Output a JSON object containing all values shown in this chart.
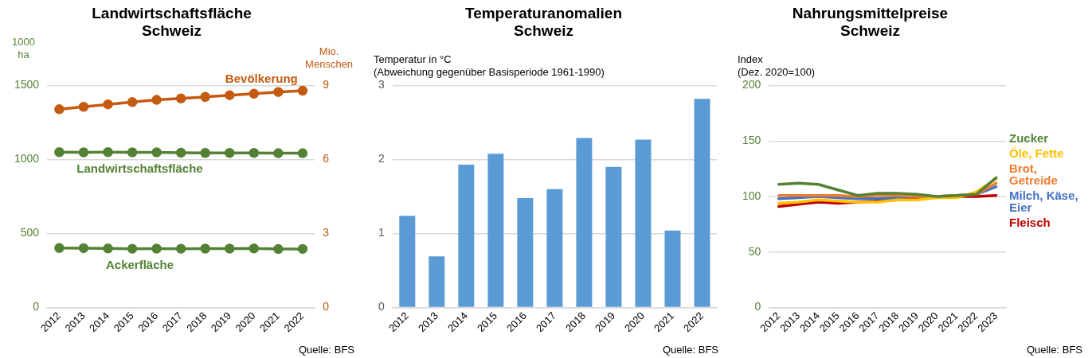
{
  "chart_data": [
    {
      "type": "line",
      "title": "Landwirtschaftsfläche\nSchweiz",
      "ylabel": "1000\nha",
      "y2label": "Mio.\nMenschen",
      "categories": [
        "2012",
        "2013",
        "2014",
        "2015",
        "2016",
        "2017",
        "2018",
        "2019",
        "2020",
        "2021",
        "2022"
      ],
      "series": [
        {
          "name": "Bevölkerung",
          "color": "#c55a11",
          "axis": "y2",
          "values": [
            8.04,
            8.14,
            8.24,
            8.33,
            8.42,
            8.48,
            8.54,
            8.61,
            8.67,
            8.74,
            8.79
          ]
        },
        {
          "name": "Landwirtschaftsfläche",
          "color": "#548235",
          "values": [
            1050,
            1049,
            1050,
            1049,
            1049,
            1046,
            1045,
            1045,
            1045,
            1043,
            1043
          ]
        },
        {
          "name": "Ackerfläche",
          "color": "#548235",
          "values": [
            402,
            401,
            399,
            397,
            398,
            397,
            398,
            398,
            399,
            395,
            396
          ]
        }
      ],
      "ylim": [
        0,
        1500
      ],
      "yticks": [
        0,
        500,
        1000,
        1500
      ],
      "y2lim": [
        0,
        9
      ],
      "y2ticks": [
        0,
        3,
        6,
        9
      ],
      "grid": "y",
      "legend": false,
      "marker": "circle",
      "annotations": [
        "Quelle: BFS"
      ]
    },
    {
      "type": "bar",
      "title": "Temperaturanomalien\nSchweiz",
      "ylabel": "Temperatur in °C\n(Abweichung gegenüber Basisperiode 1961-1990)",
      "categories": [
        "2012",
        "2013",
        "2014",
        "2015",
        "2016",
        "2017",
        "2018",
        "2019",
        "2020",
        "2021",
        "2022"
      ],
      "values": [
        1.24,
        0.69,
        1.93,
        2.08,
        1.48,
        1.6,
        2.29,
        1.9,
        2.27,
        1.04,
        2.82
      ],
      "color": "#5b9bd5",
      "ylim": [
        0,
        3
      ],
      "yticks": [
        0,
        1,
        2,
        3
      ],
      "grid": "y",
      "legend": false,
      "annotations": [
        "Quelle: BFS"
      ]
    },
    {
      "type": "line",
      "title": "Nahrungsmittelpreise\nSchweiz",
      "ylabel": "Index\n(Dez. 2020=100)",
      "categories": [
        "2012",
        "2013",
        "2014",
        "2015",
        "2016",
        "2017",
        "2018",
        "2019",
        "2020",
        "2021",
        "2022",
        "2023"
      ],
      "series": [
        {
          "name": "Zucker",
          "color": "#548235",
          "values": [
            111,
            112,
            111,
            106,
            101,
            103,
            103,
            102,
            100,
            101,
            102,
            117
          ]
        },
        {
          "name": "Öle, Fette",
          "color": "#ffc000",
          "values": [
            94,
            95,
            97,
            96,
            95,
            95,
            97,
            97,
            99,
            99,
            104,
            116
          ]
        },
        {
          "name": "Brot, Getreide",
          "color": "#ed7d31",
          "values": [
            101,
            101,
            101,
            101,
            100,
            101,
            101,
            100,
            100,
            101,
            102,
            112
          ]
        },
        {
          "name": "Milch, Käse, Eier",
          "color": "#4472c4",
          "values": [
            98,
            99,
            100,
            99,
            98,
            98,
            99,
            100,
            100,
            101,
            102,
            109
          ]
        },
        {
          "name": "Fleisch",
          "color": "#c00000",
          "values": [
            91,
            93,
            95,
            94,
            95,
            96,
            97,
            98,
            100,
            100,
            100,
            101
          ]
        }
      ],
      "ylim": [
        0,
        200
      ],
      "yticks": [
        0,
        50,
        100,
        150,
        200
      ],
      "grid": "y",
      "legend": false,
      "marker": "none",
      "annotations": [
        "Quelle: BFS"
      ]
    }
  ]
}
